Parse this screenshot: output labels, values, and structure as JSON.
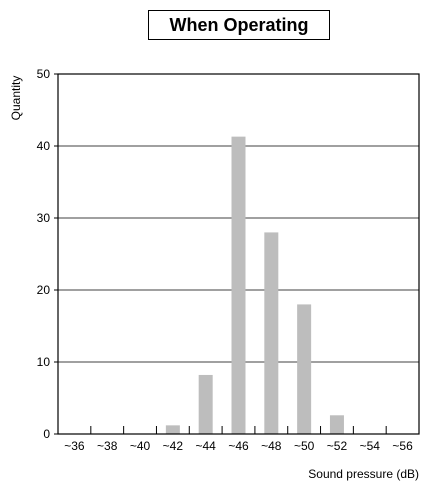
{
  "chart_data": {
    "type": "bar",
    "title": "When Operating",
    "ylabel": "Quantity",
    "xlabel": "Sound pressure (dB)",
    "ylim": [
      0,
      50
    ],
    "yticks": [
      0,
      10,
      20,
      30,
      40,
      50
    ],
    "grid": "horizontal",
    "categories": [
      "~36",
      "~38",
      "~40",
      "~42",
      "~44",
      "~46",
      "~48",
      "~50",
      "~52",
      "~54",
      "~56"
    ],
    "values": [
      0,
      0,
      0,
      1.2,
      8.2,
      41.3,
      28,
      18,
      2.6,
      0,
      0
    ],
    "bar_color": "#bdbdbd"
  }
}
